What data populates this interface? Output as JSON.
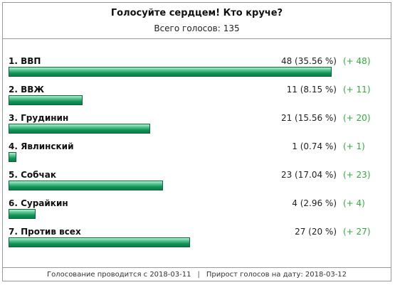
{
  "poll": {
    "title": "Голосуйте сердцем! Кто круче?",
    "total_label": "Всего голосов:",
    "total_votes": "135",
    "options": [
      {
        "label": "1. ВВП",
        "count": "48 (35.56 %)",
        "delta": "(+ 48)",
        "share": 0.3556
      },
      {
        "label": "2. ВВЖ",
        "count": "11 (8.15 %)",
        "delta": "(+ 11)",
        "share": 0.0815
      },
      {
        "label": "3. Грудинин",
        "count": "21 (15.56 %)",
        "delta": "(+ 20)",
        "share": 0.1556
      },
      {
        "label": "4. Явлинский",
        "count": "1 (0.74 %)",
        "delta": "(+ 1)",
        "share": 0.0074
      },
      {
        "label": "5. Собчак",
        "count": "23 (17.04 %)",
        "delta": "(+ 23)",
        "share": 0.1704
      },
      {
        "label": "6. Сурайкин",
        "count": "4 (2.96 %)",
        "delta": "(+ 4)",
        "share": 0.0296
      },
      {
        "label": "7. Против всех",
        "count": "27 (20 %)",
        "delta": "(+ 27)",
        "share": 0.2
      }
    ],
    "footer": {
      "started": "Голосование проводится с 2018-03-11",
      "separator": "|",
      "growth": "Прирост голосов на дату: 2018-03-12"
    },
    "colors": {
      "bar": "#14935a",
      "delta": "#2fae3c"
    }
  }
}
